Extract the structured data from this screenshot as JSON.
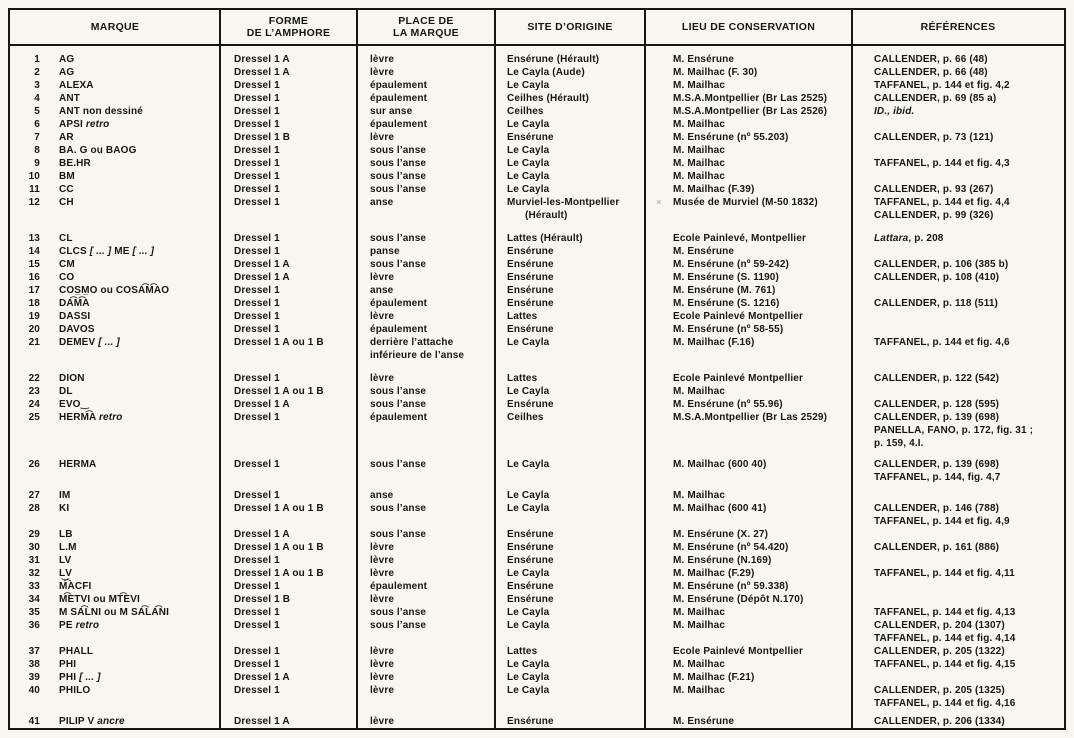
{
  "header": {
    "columns": [
      {
        "name": "marque",
        "lines": [
          "MARQUE"
        ]
      },
      {
        "name": "forme",
        "lines": [
          "FORME",
          "DE L’AMPHORE"
        ]
      },
      {
        "name": "place",
        "lines": [
          "PLACE DE",
          "LA MARQUE"
        ]
      },
      {
        "name": "site",
        "lines": [
          "SITE D’ORIGINE"
        ]
      },
      {
        "name": "lieu",
        "lines": [
          "LIEU DE CONSERVATION"
        ]
      },
      {
        "name": "references",
        "lines": [
          "RÉFÉRENCES"
        ]
      }
    ]
  },
  "rows": [
    {
      "num": "1",
      "marque": [
        {
          "t": "AG"
        }
      ],
      "forme": "Dressel 1 A",
      "place": [
        "lèvre"
      ],
      "site": [
        "Ensérune (Hérault)"
      ],
      "lieu": "M. Ensérune",
      "refs": [
        "CALLENDER, p. 66 (48)"
      ]
    },
    {
      "num": "2",
      "marque": [
        {
          "t": "AG"
        }
      ],
      "forme": "Dressel 1 A",
      "place": [
        "lèvre"
      ],
      "site": [
        "Le Cayla (Aude)"
      ],
      "lieu": "M. Mailhac (F. 30)",
      "refs": [
        "CALLENDER, p. 66 (48)"
      ]
    },
    {
      "num": "3",
      "marque": [
        {
          "t": "ALEXA"
        }
      ],
      "forme": "Dressel 1",
      "place": [
        "épaulement"
      ],
      "site": [
        "Le Cayla"
      ],
      "lieu": "M. Mailhac",
      "refs": [
        "TAFFANEL, p. 144 et fig. 4,2"
      ]
    },
    {
      "num": "4",
      "marque": [
        {
          "t": "ANT"
        }
      ],
      "forme": "Dressel 1",
      "place": [
        "épaulement"
      ],
      "site": [
        "Ceilhes (Hérault)"
      ],
      "lieu": "M.S.A.Montpellier (Br Las 2525)",
      "refs": [
        "CALLENDER, p. 69 (85 a)"
      ]
    },
    {
      "num": "5",
      "marque": [
        {
          "t": "ANT non dessiné"
        }
      ],
      "forme": "Dressel 1",
      "place": [
        "sur anse"
      ],
      "site": [
        "Ceilhes"
      ],
      "lieu": "M.S.A.Montpellier (Br Las 2526)",
      "refs": [
        [
          {
            "t": "ID.,  ibid.",
            "i": true
          }
        ]
      ]
    },
    {
      "num": "6",
      "marque": [
        {
          "t": "APSI "
        },
        {
          "t": "retro",
          "i": true
        }
      ],
      "forme": "Dressel 1",
      "place": [
        "épaulement"
      ],
      "site": [
        "Le Cayla"
      ],
      "lieu": "M. Mailhac",
      "refs": []
    },
    {
      "num": "7",
      "marque": [
        {
          "t": "AR"
        }
      ],
      "forme": "Dressel 1 B",
      "place": [
        "lèvre"
      ],
      "site": [
        "Ensérune"
      ],
      "lieu": "M. Ensérune (nº 55.203)",
      "refs": [
        "CALLENDER, p. 73 (121)"
      ]
    },
    {
      "num": "8",
      "marque": [
        {
          "t": "BA. G ou BAOG"
        }
      ],
      "forme": "Dressel 1",
      "place": [
        "sous l’anse"
      ],
      "site": [
        "Le Cayla"
      ],
      "lieu": "M. Mailhac",
      "refs": []
    },
    {
      "num": "9",
      "marque": [
        {
          "t": "BE.HR"
        }
      ],
      "forme": "Dressel 1",
      "place": [
        "sous l’anse"
      ],
      "site": [
        "Le Cayla"
      ],
      "lieu": "M. Mailhac",
      "refs": [
        "TAFFANEL, p. 144 et fig. 4,3"
      ]
    },
    {
      "num": "10",
      "marque": [
        {
          "t": "BM"
        }
      ],
      "forme": "Dressel 1",
      "place": [
        "sous l’anse"
      ],
      "site": [
        "Le Cayla"
      ],
      "lieu": "M. Mailhac",
      "refs": []
    },
    {
      "num": "11",
      "marque": [
        {
          "t": "CC"
        }
      ],
      "forme": "Dressel 1",
      "place": [
        "sous l’anse"
      ],
      "site": [
        "Le Cayla"
      ],
      "lieu": "M. Mailhac (F.39)",
      "refs": [
        "CALLENDER, p. 93 (267)"
      ]
    },
    {
      "num": "12",
      "marque": [
        {
          "t": "CH"
        }
      ],
      "forme": "Dressel 1",
      "place": [
        "anse"
      ],
      "site": [
        "Murviel-les-Montpellier",
        {
          "t": "(Hérault)",
          "indent": true
        }
      ],
      "lieu": "Musée de Murviel (M-50 1832)",
      "mark": "×",
      "refs": [
        "TAFFANEL, p. 144 et fig. 4,4",
        "CALLENDER, p. 99 (326)"
      ]
    },
    {
      "num": "13",
      "gap": 10,
      "marque": [
        {
          "t": "CL"
        }
      ],
      "forme": "Dressel 1",
      "place": [
        "sous l’anse"
      ],
      "site": [
        "Lattes (Hérault)"
      ],
      "lieu": "Ecole Painlevé, Montpellier",
      "refs": [
        [
          {
            "t": "Lattara",
            "i": true
          },
          {
            "t": ", p. 208"
          }
        ]
      ]
    },
    {
      "num": "14",
      "marque": [
        {
          "t": "CLCS "
        },
        {
          "t": "[ ... ]",
          "i": true
        },
        {
          "t": " ME "
        },
        {
          "t": "[ ... ]",
          "i": true
        }
      ],
      "forme": "Dressel 1",
      "place": [
        "panse"
      ],
      "site": [
        "Ensérune"
      ],
      "lieu": "M. Ensérune",
      "refs": []
    },
    {
      "num": "15",
      "marque": [
        {
          "t": "CM"
        }
      ],
      "forme": "Dressel 1 A",
      "place": [
        "sous l’anse"
      ],
      "site": [
        "Ensérune"
      ],
      "lieu": "M. Ensérune (nº 59-242)",
      "refs": [
        "CALLENDER, p. 106 (385 b)"
      ]
    },
    {
      "num": "16",
      "marque": [
        {
          "t": "CO"
        }
      ],
      "forme": "Dressel 1 A",
      "place": [
        "lèvre"
      ],
      "site": [
        "Ensérune"
      ],
      "lieu": "M. Ensérune (S. 1190)",
      "refs": [
        "CALLENDER, p. 108 (410)"
      ]
    },
    {
      "num": "17",
      "marque": [
        {
          "t": "COS̲M̲O ou COSA͡M͡AO"
        }
      ],
      "forme": "Dressel 1",
      "place": [
        "anse"
      ],
      "site": [
        "Ensérune"
      ],
      "lieu": "M. Ensérune (M. 761)",
      "refs": []
    },
    {
      "num": "18",
      "marque": [
        {
          "t": "DA͡M͡A"
        }
      ],
      "forme": "Dressel 1",
      "place": [
        "épaulement"
      ],
      "site": [
        "Ensérune"
      ],
      "lieu": "M. Ensérune (S. 1216)",
      "refs": [
        "CALLENDER, p. 118 (511)"
      ]
    },
    {
      "num": "19",
      "marque": [
        {
          "t": "DASSI"
        }
      ],
      "forme": "Dressel 1",
      "place": [
        "lèvre"
      ],
      "site": [
        "Lattes"
      ],
      "lieu": "Ecole Painlevé Montpellier",
      "refs": []
    },
    {
      "num": "20",
      "marque": [
        {
          "t": "DAVOS"
        }
      ],
      "forme": "Dressel 1",
      "place": [
        "épaulement"
      ],
      "site": [
        "Ensérune"
      ],
      "lieu": "M. Ensérune (nº 58-55)",
      "refs": []
    },
    {
      "num": "21",
      "marque": [
        {
          "t": "DEMEV "
        },
        {
          "t": "[ ... ]",
          "i": true
        }
      ],
      "forme": "Dressel 1 A ou 1 B",
      "place": [
        "derrière l’attache",
        "inférieure de l’anse"
      ],
      "site": [
        "Le Cayla"
      ],
      "lieu": "M. Mailhac (F.16)",
      "refs": [
        "TAFFANEL, p. 144 et fig. 4,6"
      ]
    },
    {
      "num": "22",
      "gap": 10,
      "marque": [
        {
          "t": "DION"
        }
      ],
      "forme": "Dressel 1",
      "place": [
        "lèvre"
      ],
      "site": [
        "Lattes"
      ],
      "lieu": "Ecole Painlevé Montpellier",
      "refs": [
        "CALLENDER, p. 122 (542)"
      ]
    },
    {
      "num": "23",
      "marque": [
        {
          "t": "DL"
        }
      ],
      "forme": "Dressel 1 A ou 1 B",
      "place": [
        "sous l’anse"
      ],
      "site": [
        "Le Cayla"
      ],
      "lieu": "M. Mailhac",
      "refs": []
    },
    {
      "num": "24",
      "marque": [
        {
          "t": "EVO‿"
        }
      ],
      "forme": "Dressel 1 A",
      "place": [
        "sous l’anse"
      ],
      "site": [
        "Ensérune"
      ],
      "lieu": "M. Ensérune (nº 55.96)",
      "refs": [
        "CALLENDER, p. 128 (595)"
      ]
    },
    {
      "num": "25",
      "marque": [
        {
          "t": "HERM͡A "
        },
        {
          "t": "retro",
          "i": true
        }
      ],
      "forme": "Dressel 1",
      "place": [
        "épaulement"
      ],
      "site": [
        "Ceilhes"
      ],
      "lieu": "M.S.A.Montpellier (Br Las 2529)",
      "refs": [
        "CALLENDER, p. 139 (698)",
        "PANELLA, FANO, p. 172, fig. 31 ;",
        "p. 159, 4.I."
      ]
    },
    {
      "num": "26",
      "gap": 8,
      "marque": [
        {
          "t": "HERMA"
        }
      ],
      "forme": "Dressel 1",
      "place": [
        "sous l’anse"
      ],
      "site": [
        "Le Cayla"
      ],
      "lieu": "M. Mailhac (600 40)",
      "refs": [
        "CALLENDER, p. 139 (698)",
        "TAFFANEL, p. 144, fig. 4,7"
      ]
    },
    {
      "num": "27",
      "gap": 5,
      "marque": [
        {
          "t": "IM"
        }
      ],
      "forme": "Dressel 1",
      "place": [
        "anse"
      ],
      "site": [
        "Le Cayla"
      ],
      "lieu": "M. Mailhac",
      "refs": []
    },
    {
      "num": "28",
      "marque": [
        {
          "t": "KI"
        }
      ],
      "forme": "Dressel 1 A ou 1 B",
      "place": [
        "sous l’anse"
      ],
      "site": [
        "Le Cayla"
      ],
      "lieu": "M. Mailhac (600 41)",
      "refs": [
        "CALLENDER, p. 146 (788)",
        "TAFFANEL, p. 144 et fig. 4,9"
      ]
    },
    {
      "num": "29",
      "marque": [
        {
          "t": "LB"
        }
      ],
      "forme": "Dressel 1 A",
      "place": [
        "sous l’anse"
      ],
      "site": [
        "Ensérune"
      ],
      "lieu": "M. Ensérune (X. 27)",
      "refs": []
    },
    {
      "num": "30",
      "marque": [
        {
          "t": "L.M"
        }
      ],
      "forme": "Dressel 1 A ou 1 B",
      "place": [
        "lèvre"
      ],
      "site": [
        "Ensérune"
      ],
      "lieu": "M. Ensérune (nº 54.420)",
      "refs": [
        "CALLENDER, p. 161 (886)"
      ]
    },
    {
      "num": "31",
      "marque": [
        {
          "t": "LV"
        }
      ],
      "forme": "Dressel 1",
      "place": [
        "lèvre"
      ],
      "site": [
        "Ensérune"
      ],
      "lieu": "M. Ensérune (N.169)",
      "refs": []
    },
    {
      "num": "32",
      "marque": [
        {
          "t": "L͜V"
        }
      ],
      "forme": "Dressel 1 A ou 1 B",
      "place": [
        "lèvre"
      ],
      "site": [
        "Le Cayla"
      ],
      "lieu": "M. Mailhac (F.29)",
      "refs": [
        "TAFFANEL, p. 144 et fig. 4,11"
      ]
    },
    {
      "num": "33",
      "marque": [
        {
          "t": "M͡ACFI"
        }
      ],
      "forme": "Dressel 1",
      "place": [
        "épaulement"
      ],
      "site": [
        "Ensérune"
      ],
      "lieu": "M. Ensérune (nº 59.338)",
      "refs": []
    },
    {
      "num": "34",
      "marque": [
        {
          "t": "M͡ETVI ou MT͡EVI"
        }
      ],
      "forme": "Dressel 1 B",
      "place": [
        "lèvre"
      ],
      "site": [
        "Ensérune"
      ],
      "lieu": "M. Ensérune (Dépôt N.170)",
      "refs": []
    },
    {
      "num": "35",
      "marque": [
        {
          "t": "M SA͡LNI ou M SA͡LA͡NI"
        }
      ],
      "forme": "Dressel 1",
      "place": [
        "sous l’anse"
      ],
      "site": [
        "Le Cayla"
      ],
      "lieu": "M. Mailhac",
      "refs": [
        "TAFFANEL, p. 144 et fig. 4,13"
      ]
    },
    {
      "num": "36",
      "marque": [
        {
          "t": "PE "
        },
        {
          "t": "retro",
          "i": true
        }
      ],
      "forme": "Dressel 1",
      "place": [
        "sous l’anse"
      ],
      "site": [
        "Le Cayla"
      ],
      "lieu": "M. Mailhac",
      "refs": [
        "CALLENDER, p. 204 (1307)",
        "TAFFANEL, p. 144 et fig. 4,14"
      ]
    },
    {
      "num": "37",
      "marque": [
        {
          "t": "PHALL"
        }
      ],
      "forme": "Dressel 1",
      "place": [
        "lèvre"
      ],
      "site": [
        "Lattes"
      ],
      "lieu": "Ecole Painlevé Montpellier",
      "refs": [
        "CALLENDER, p. 205 (1322)"
      ]
    },
    {
      "num": "38",
      "marque": [
        {
          "t": "PHI"
        }
      ],
      "forme": "Dressel 1",
      "place": [
        "lèvre"
      ],
      "site": [
        "Le Cayla"
      ],
      "lieu": "M. Mailhac",
      "refs": [
        "TAFFANEL, p. 144 et fig. 4,15"
      ]
    },
    {
      "num": "39",
      "marque": [
        {
          "t": "PHI "
        },
        {
          "t": "[ ... ]",
          "i": true
        }
      ],
      "forme": "Dressel 1 A",
      "place": [
        "lèvre"
      ],
      "site": [
        "Le Cayla"
      ],
      "lieu": "M. Mailhac (F.21)",
      "refs": []
    },
    {
      "num": "40",
      "marque": [
        {
          "t": "PHILO"
        }
      ],
      "forme": "Dressel 1",
      "place": [
        "lèvre"
      ],
      "site": [
        "Le Cayla"
      ],
      "lieu": "M. Mailhac",
      "refs": [
        "CALLENDER, p. 205 (1325)",
        "TAFFANEL, p. 144 et fig. 4,16"
      ]
    },
    {
      "num": "41",
      "gap": 5,
      "marque": [
        {
          "t": "PILIP V "
        },
        {
          "t": "ancre",
          "i": true
        }
      ],
      "forme": "Dressel 1 A",
      "place": [
        "lèvre"
      ],
      "site": [
        "Ensérune"
      ],
      "lieu": "M. Ensérune",
      "refs": [
        "CALLENDER, p. 206 (1334)"
      ]
    }
  ]
}
